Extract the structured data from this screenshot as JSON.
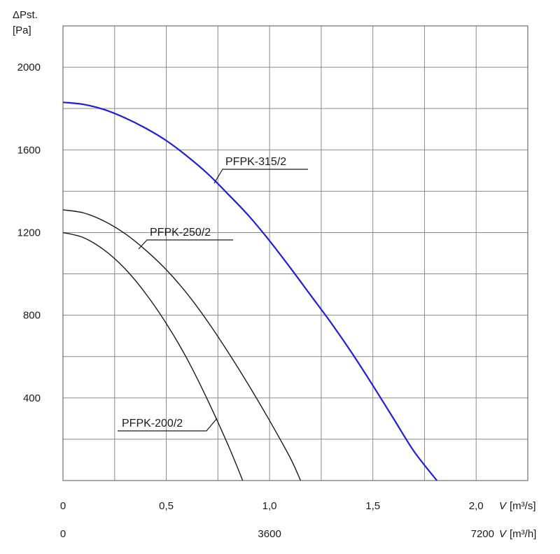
{
  "chart_data": {
    "type": "line",
    "y_axis": {
      "label_symbol": "ΔPst.",
      "label_unit": "[Pa]",
      "ticks": [
        400,
        800,
        1200,
        1600,
        2000
      ],
      "range": [
        0,
        2200
      ],
      "minor_step": 200
    },
    "x_axis": {
      "label_symbol": "V",
      "label_unit": "[m³/s]",
      "ticks": [
        0,
        0.5,
        1.0,
        1.5,
        2.0
      ],
      "tick_labels": [
        "0",
        "0,5",
        "1,0",
        "1,5",
        "2,0"
      ],
      "range": [
        0,
        2.25
      ],
      "minor_step": 0.25
    },
    "x_axis_secondary": {
      "label_symbol": "V",
      "label_unit": "[m³/h]",
      "tick_labels": [
        "0",
        "3600",
        "7200"
      ],
      "ticks_m3s": [
        0,
        1.0,
        2.0
      ]
    },
    "grid": true,
    "series": [
      {
        "name": "PFPK-315/2",
        "color": "#1f1fd6",
        "x": [
          0,
          0.1,
          0.2,
          0.3,
          0.4,
          0.5,
          0.6,
          0.7,
          0.8,
          0.9,
          1.0,
          1.1,
          1.2,
          1.3,
          1.4,
          1.5,
          1.6,
          1.7,
          1.81
        ],
        "y": [
          1830,
          1820,
          1795,
          1755,
          1705,
          1645,
          1570,
          1485,
          1385,
          1280,
          1160,
          1030,
          895,
          760,
          615,
          460,
          300,
          140,
          0
        ]
      },
      {
        "name": "PFPK-250/2",
        "color": "#1a1a1a",
        "x": [
          0,
          0.1,
          0.2,
          0.3,
          0.4,
          0.5,
          0.6,
          0.7,
          0.8,
          0.9,
          1.0,
          1.1,
          1.15
        ],
        "y": [
          1310,
          1295,
          1255,
          1195,
          1115,
          1020,
          905,
          770,
          620,
          460,
          290,
          110,
          0
        ]
      },
      {
        "name": "PFPK-200/2",
        "color": "#1a1a1a",
        "x": [
          0,
          0.1,
          0.2,
          0.3,
          0.4,
          0.5,
          0.6,
          0.7,
          0.8,
          0.87
        ],
        "y": [
          1200,
          1175,
          1115,
          1025,
          905,
          760,
          590,
          390,
          170,
          0
        ]
      }
    ],
    "labels": {
      "s315": "PFPK-315/2",
      "s250": "PFPK-250/2",
      "s200": "PFPK-200/2"
    }
  }
}
